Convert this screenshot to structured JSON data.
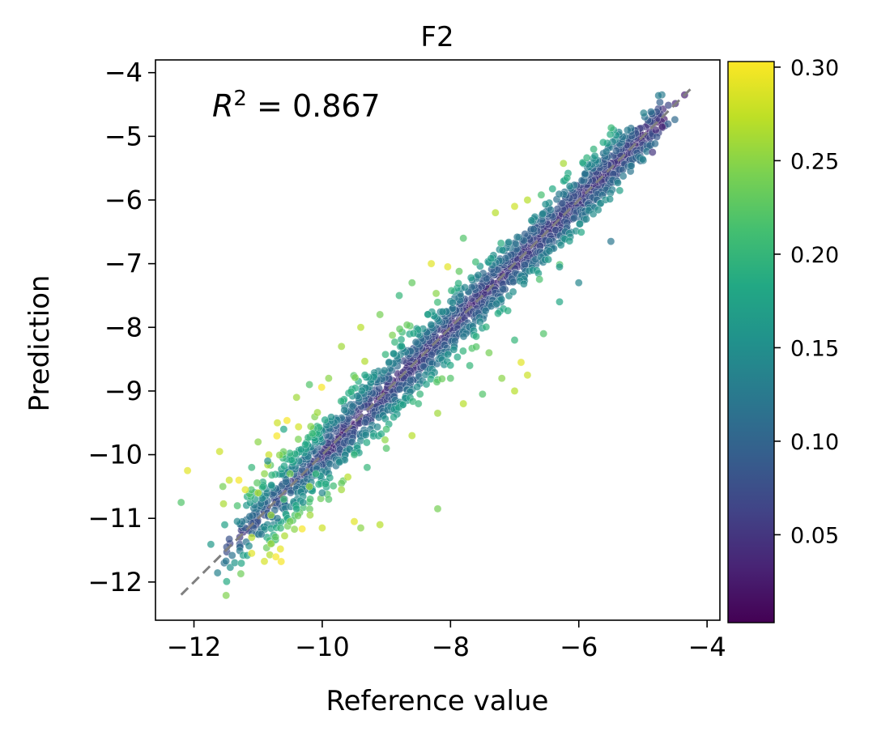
{
  "chart_data": {
    "type": "scatter",
    "title": "F2",
    "xlabel": "Reference value",
    "ylabel": "Prediction",
    "xlim": [
      -12.6,
      -3.8
    ],
    "ylim": [
      -12.6,
      -3.8
    ],
    "x_ticks": [
      -12,
      -10,
      -8,
      -6,
      -4
    ],
    "y_ticks": [
      -12,
      -11,
      -10,
      -9,
      -8,
      -7,
      -6,
      -5,
      -4
    ],
    "x_tick_labels": [
      "−12",
      "−10",
      "−8",
      "−6",
      "−4"
    ],
    "y_tick_labels": [
      "−12",
      "−11",
      "−10",
      "−9",
      "−8",
      "−7",
      "−6",
      "−5",
      "−4"
    ],
    "annotation": {
      "r2_symbol": "R",
      "r2_power": "2",
      "r2_text": " = 0.867"
    },
    "reference_line": {
      "from": [
        -12.2,
        -12.2
      ],
      "to": [
        -4.2,
        -4.2
      ],
      "style": "dashed",
      "color": "#808080"
    },
    "colorbar": {
      "colormap": "viridis",
      "range": [
        0.003,
        0.303
      ],
      "ticks": [
        0.05,
        0.1,
        0.15,
        0.2,
        0.25,
        0.3
      ],
      "tick_labels": [
        "0.05",
        "0.10",
        "0.15",
        "0.20",
        "0.25",
        "0.30"
      ]
    },
    "grid": false,
    "series": [
      {
        "points": [
          [
            -12.2,
            -10.75,
            0.22
          ],
          [
            -12.1,
            -10.25,
            0.29
          ],
          [
            -11.6,
            -9.95,
            0.28
          ],
          [
            -11.55,
            -10.5,
            0.24
          ],
          [
            -11.45,
            -10.4,
            0.28
          ],
          [
            -11.2,
            -10.55,
            0.29
          ],
          [
            -11.0,
            -10.6,
            0.27
          ],
          [
            -10.9,
            -10.3,
            0.25
          ],
          [
            -11.1,
            -11.55,
            0.29
          ],
          [
            -11.1,
            -11.3,
            0.27
          ],
          [
            -10.95,
            -11.25,
            0.12
          ],
          [
            -10.8,
            -10.95,
            0.26
          ],
          [
            -10.8,
            -11.4,
            0.26
          ],
          [
            -10.5,
            -11.05,
            0.24
          ],
          [
            -10.2,
            -10.5,
            0.26
          ],
          [
            -10.0,
            -11.15,
            0.28
          ],
          [
            -9.5,
            -11.05,
            0.29
          ],
          [
            -9.4,
            -11.15,
            0.25
          ],
          [
            -9.1,
            -11.1,
            0.27
          ],
          [
            -8.2,
            -10.85,
            0.24
          ],
          [
            -9.9,
            -10.7,
            0.22
          ],
          [
            -10.4,
            -10.85,
            0.18
          ],
          [
            -10.6,
            -10.7,
            0.21
          ],
          [
            -9.7,
            -10.45,
            0.23
          ],
          [
            -9.3,
            -10.2,
            0.2
          ],
          [
            -9.0,
            -9.9,
            0.22
          ],
          [
            -8.6,
            -9.7,
            0.27
          ],
          [
            -8.2,
            -9.35,
            0.26
          ],
          [
            -7.8,
            -9.2,
            0.27
          ],
          [
            -7.5,
            -9.05,
            0.22
          ],
          [
            -7.2,
            -8.8,
            0.25
          ],
          [
            -6.9,
            -8.55,
            0.29
          ],
          [
            -6.8,
            -8.75,
            0.28
          ],
          [
            -7.0,
            -9.0,
            0.27
          ],
          [
            -6.55,
            -8.1,
            0.22
          ],
          [
            -6.3,
            -7.6,
            0.18
          ],
          [
            -6.3,
            -7.05,
            0.16
          ],
          [
            -6.0,
            -7.3,
            0.14
          ],
          [
            -5.5,
            -6.65,
            0.12
          ],
          [
            -4.8,
            -4.9,
            0.04
          ],
          [
            -4.85,
            -5.25,
            0.05
          ],
          [
            -4.35,
            -4.35,
            0.03
          ],
          [
            -4.7,
            -4.85,
            0.03
          ],
          [
            -7.0,
            -8.2,
            0.2
          ],
          [
            -7.4,
            -8.4,
            0.24
          ],
          [
            -7.7,
            -8.6,
            0.2
          ],
          [
            -8.0,
            -8.8,
            0.22
          ],
          [
            -8.5,
            -9.2,
            0.2
          ],
          [
            -9.0,
            -9.6,
            0.21
          ],
          [
            -9.5,
            -10.0,
            0.2
          ],
          [
            -10.1,
            -10.3,
            0.2
          ],
          [
            -10.5,
            -10.3,
            0.24
          ],
          [
            -9.9,
            -8.8,
            0.25
          ],
          [
            -9.7,
            -8.3,
            0.26
          ],
          [
            -9.4,
            -8.0,
            0.27
          ],
          [
            -9.1,
            -7.8,
            0.24
          ],
          [
            -8.8,
            -7.5,
            0.2
          ],
          [
            -8.6,
            -7.3,
            0.23
          ],
          [
            -8.3,
            -7.0,
            0.29
          ],
          [
            -7.8,
            -6.6,
            0.22
          ],
          [
            -7.3,
            -6.2,
            0.27
          ],
          [
            -7.0,
            -6.1,
            0.28
          ],
          [
            -6.8,
            -6.0,
            0.27
          ],
          [
            -10.7,
            -9.5,
            0.28
          ],
          [
            -10.4,
            -9.1,
            0.26
          ],
          [
            -10.2,
            -8.9,
            0.22
          ],
          [
            -11.0,
            -9.8,
            0.25
          ],
          [
            -11.1,
            -10.2,
            0.2
          ],
          [
            -10.85,
            -10.1,
            0.15
          ],
          [
            -10.6,
            -9.6,
            0.18
          ],
          [
            -11.3,
            -10.4,
            0.3
          ],
          [
            -10.7,
            -11.0,
            0.12
          ],
          [
            -10.3,
            -10.75,
            0.15
          ],
          [
            -10.0,
            -10.6,
            0.14
          ],
          [
            -9.7,
            -10.55,
            0.26
          ],
          [
            -9.6,
            -10.35,
            0.27
          ]
        ],
        "trend": {
          "slope": 1.0,
          "intercept": 0.0,
          "x_range": [
            -11.2,
            -4.9
          ],
          "count": 2200
        }
      }
    ]
  }
}
